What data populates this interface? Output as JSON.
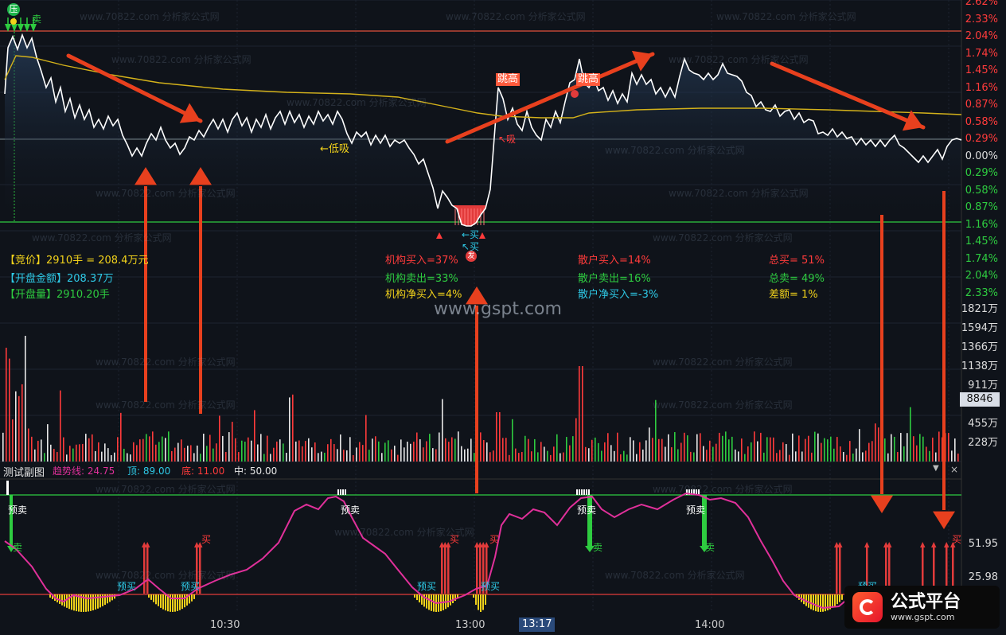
{
  "price_axis": [
    "2.62%",
    "2.33%",
    "2.04%",
    "1.74%",
    "1.45%",
    "1.16%",
    "0.87%",
    "0.58%",
    "0.29%",
    "0.00%",
    "0.29%",
    "0.58%",
    "0.87%",
    "1.16%",
    "1.45%",
    "1.74%",
    "2.04%",
    "2.33%"
  ],
  "volume_axis": [
    "1821万",
    "1594万",
    "1366万",
    "1138万",
    "911万",
    "455万",
    "228万"
  ],
  "volume_highlight": "8846",
  "info": {
    "auction_label": "【竞价】",
    "auction_value": "2910手 = 208.4万元",
    "open_amount_label": "【开盘金额】",
    "open_amount_value": "208.37万",
    "open_volume_label": "【开盘量】",
    "open_volume_value": "2910.20手"
  },
  "stats": {
    "inst_buy": "机构买入=37%",
    "inst_sell": "机构卖出=33%",
    "inst_net": "机构净买入=4%",
    "retail_buy": "散户买入=14%",
    "retail_sell": "散户卖出=16%",
    "retail_net": "散户净买入=-3%",
    "total_buy": "总买= 51%",
    "total_sell": "总卖= 49%",
    "diff": "差额= 1%"
  },
  "chart_labels": {
    "ya": "压",
    "sell": "卖",
    "low_buy": "←低吸",
    "jump": "跳高",
    "xi": "↖吸",
    "buy_arrow": "←买",
    "buy_up": "↖买",
    "fa": "发"
  },
  "watermark": {
    "site": "www.70822.com 分析家公式网",
    "gspt": "www.gspt.com"
  },
  "sub": {
    "title": "测试副图",
    "trend": "趋势线: 24.75",
    "top": "顶: 89.00",
    "bottom": "底: 11.00",
    "mid": "中: 50.00",
    "axis_top": "51.95",
    "axis_bottom": "25.98",
    "pre_sell": "预卖",
    "pre_buy": "预买",
    "sell": "卖",
    "buy": "买"
  },
  "time_axis": [
    "10:30",
    "13:00",
    "13:17",
    "14:00"
  ],
  "logo": {
    "name": "公式平台",
    "url": "www.gspt.com"
  },
  "colors": {
    "up": "#ff3b3b",
    "down": "#2ecc40",
    "line": "#ffffff",
    "avg": "#d4b21a",
    "trend": "#e0309a",
    "cyan": "#2ec9e6",
    "yellow": "#f2d21b"
  }
}
